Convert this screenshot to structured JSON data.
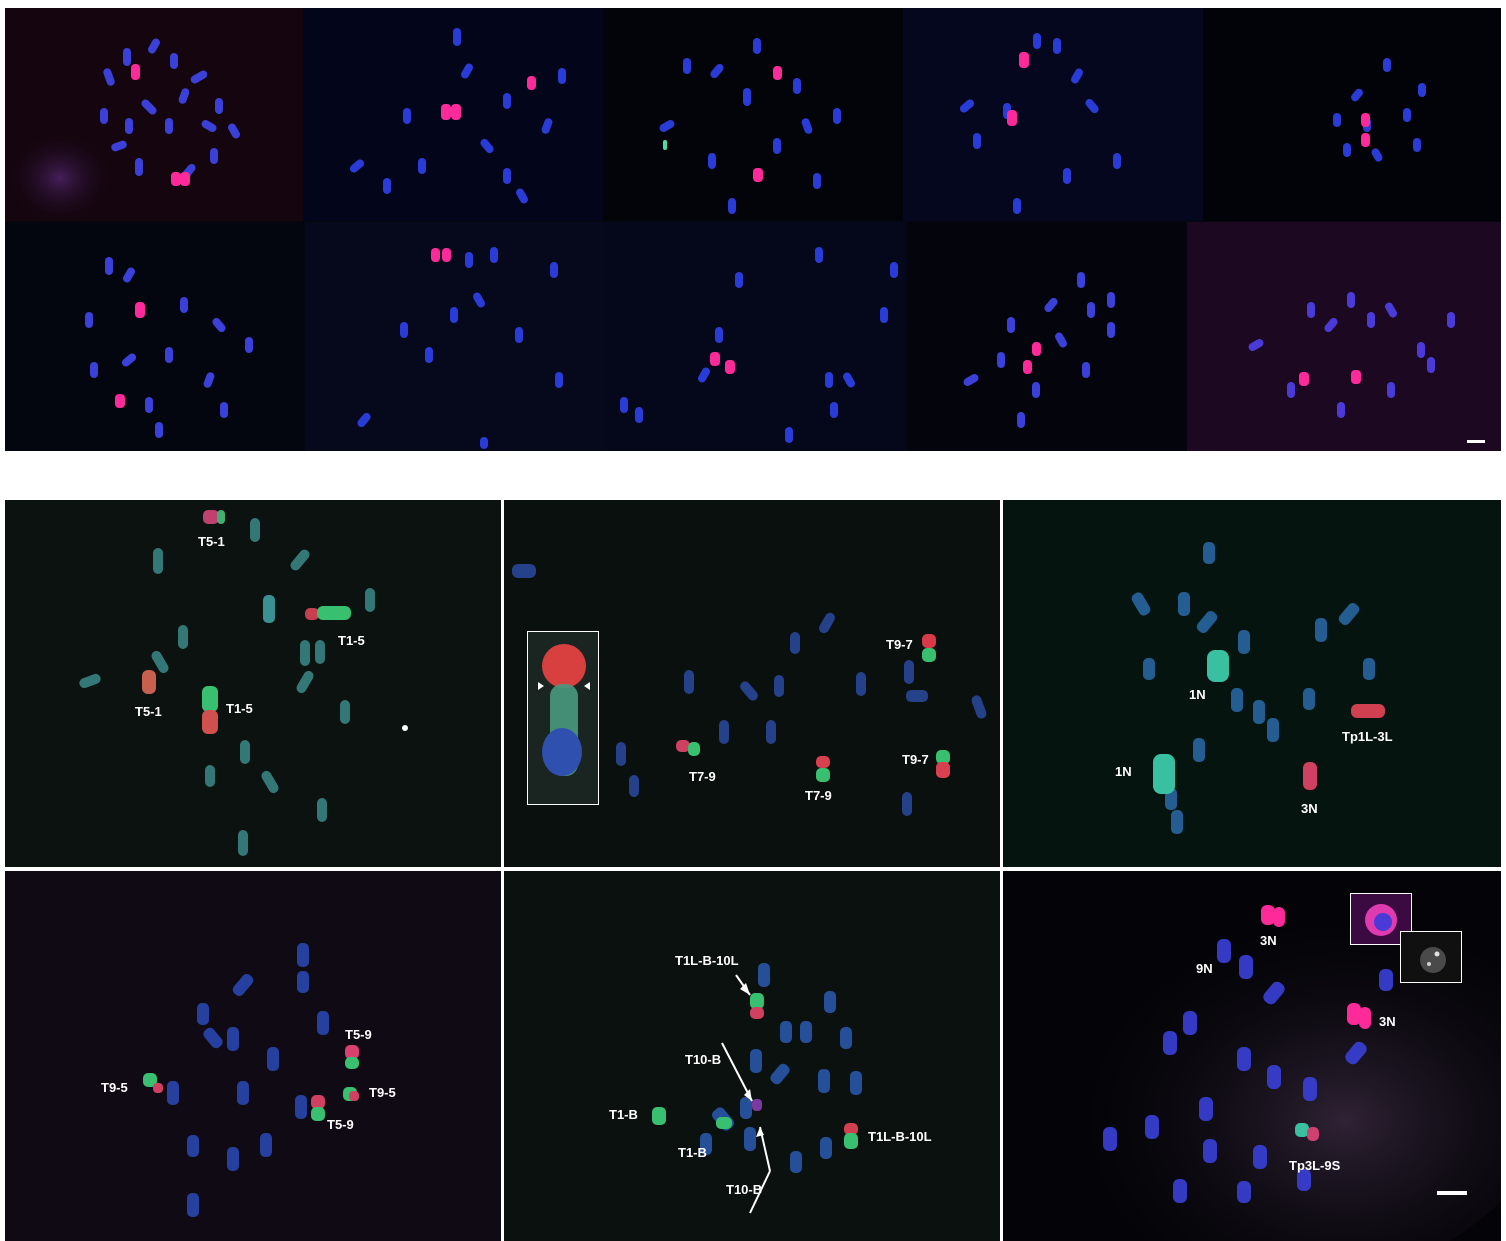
{
  "figure": {
    "panel_a": {
      "tiles": [
        {
          "bg": "#1a0612"
        },
        {
          "bg": "#03051a"
        },
        {
          "bg": "#02040a"
        },
        {
          "bg": "#05071e"
        },
        {
          "bg": "#020308"
        },
        {
          "bg": "#03050f"
        },
        {
          "bg": "#06091c"
        },
        {
          "bg": "#04081a"
        },
        {
          "bg": "#03040c"
        },
        {
          "bg": "#1c0820"
        }
      ]
    },
    "panel_b": {
      "tiles": [
        {
          "bg": "#0c1210",
          "labels": [
            {
              "id": "t5-1-top",
              "text": "T5-1"
            },
            {
              "id": "t1-5-right",
              "text": "T1-5"
            },
            {
              "id": "t5-1-left",
              "text": "T5-1"
            },
            {
              "id": "t1-5-mid",
              "text": "T1-5"
            }
          ]
        },
        {
          "bg": "#0a100d",
          "labels": [
            {
              "id": "t9-7-top",
              "text": "T9-7"
            },
            {
              "id": "t7-9-left",
              "text": "T7-9"
            },
            {
              "id": "t7-9-mid",
              "text": "T7-9"
            },
            {
              "id": "t9-7-bottom",
              "text": "T9-7"
            }
          ]
        },
        {
          "bg": "#061410",
          "labels": [
            {
              "id": "1n-top",
              "text": "1N"
            },
            {
              "id": "1n-left",
              "text": "1N"
            },
            {
              "id": "tp1l-3l",
              "text": "Tp1L-3L"
            },
            {
              "id": "3n",
              "text": "3N"
            }
          ]
        },
        {
          "bg": "#100a14",
          "labels": [
            {
              "id": "t5-9-top",
              "text": "T5-9"
            },
            {
              "id": "t9-5-left",
              "text": "T9-5"
            },
            {
              "id": "t9-5-right",
              "text": "T9-5"
            },
            {
              "id": "t5-9-bottom",
              "text": "T5-9"
            }
          ]
        },
        {
          "bg": "#0b110f",
          "labels": [
            {
              "id": "t1l-b-10l-top",
              "text": "T1L-B-10L"
            },
            {
              "id": "t10-b-top",
              "text": "T10-B"
            },
            {
              "id": "t1-b-left",
              "text": "T1-B"
            },
            {
              "id": "t1-b-mid",
              "text": "T1-B"
            },
            {
              "id": "t1l-b-10l-right",
              "text": "T1L-B-10L"
            },
            {
              "id": "t10-b-bottom",
              "text": "T10-B"
            }
          ]
        },
        {
          "bg": "#040408",
          "labels": [
            {
              "id": "3n-top",
              "text": "3N"
            },
            {
              "id": "9n",
              "text": "9N"
            },
            {
              "id": "3n-right",
              "text": "3N"
            },
            {
              "id": "tp3l-9s",
              "text": "Tp3L-9S"
            }
          ]
        }
      ]
    },
    "colors": {
      "dapi_blue": "#2a3cc8",
      "probe_red": "#e0305a",
      "probe_magenta": "#ff2a9a",
      "probe_green": "#38c878",
      "separator": "#ffffff"
    }
  }
}
